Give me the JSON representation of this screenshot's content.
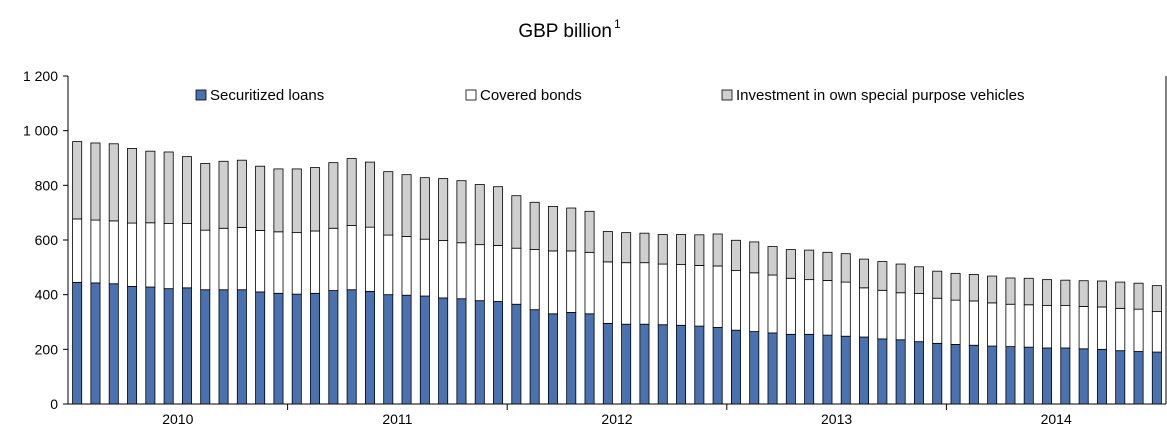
{
  "title": "GBP billion",
  "title_superscript": "1",
  "chart_data": {
    "type": "bar",
    "stacked": true,
    "title": "GBP billion",
    "ylim": [
      0,
      1200
    ],
    "yticks": [
      0,
      200,
      400,
      600,
      800,
      1000,
      1200
    ],
    "ytick_labels": [
      "0",
      "200",
      "400",
      "600",
      "800",
      "1 000",
      "1 200"
    ],
    "year_labels": [
      "2010",
      "2011",
      "2012",
      "2013",
      "2014"
    ],
    "bars_per_year": 12,
    "grid": false,
    "legend_position": "top",
    "series": [
      {
        "name": "Securitized loans",
        "color": "#4a72b0",
        "values": [
          445,
          443,
          440,
          430,
          428,
          422,
          425,
          418,
          418,
          418,
          410,
          405,
          402,
          405,
          415,
          418,
          412,
          400,
          398,
          395,
          388,
          385,
          378,
          375,
          365,
          345,
          330,
          335,
          330,
          295,
          292,
          292,
          290,
          288,
          285,
          280,
          270,
          265,
          260,
          255,
          255,
          252,
          248,
          245,
          238,
          235,
          228,
          222,
          218,
          215,
          212,
          210,
          208,
          205,
          205,
          202,
          200,
          195,
          192,
          190
        ]
      },
      {
        "name": "Covered bonds",
        "color": "#ffffff",
        "values": [
          232,
          230,
          230,
          232,
          235,
          238,
          235,
          218,
          225,
          228,
          225,
          225,
          225,
          228,
          228,
          235,
          235,
          218,
          215,
          208,
          210,
          205,
          205,
          205,
          205,
          220,
          230,
          225,
          225,
          225,
          225,
          225,
          222,
          222,
          222,
          225,
          218,
          215,
          212,
          205,
          200,
          200,
          198,
          180,
          178,
          172,
          176,
          165,
          162,
          162,
          158,
          155,
          155,
          155,
          155,
          155,
          155,
          155,
          155,
          148
        ]
      },
      {
        "name": "Investment in own special purpose vehicles",
        "color": "#cfcfcf",
        "values": [
          283,
          282,
          282,
          273,
          262,
          262,
          245,
          244,
          245,
          246,
          235,
          230,
          233,
          232,
          240,
          245,
          238,
          232,
          226,
          225,
          227,
          227,
          220,
          215,
          192,
          173,
          163,
          157,
          150,
          111,
          110,
          108,
          108,
          110,
          112,
          117,
          111,
          113,
          104,
          105,
          108,
          103,
          104,
          105,
          105,
          105,
          98,
          99,
          98,
          97,
          98,
          96,
          97,
          95,
          93,
          94,
          95,
          96,
          95,
          95
        ]
      }
    ]
  }
}
